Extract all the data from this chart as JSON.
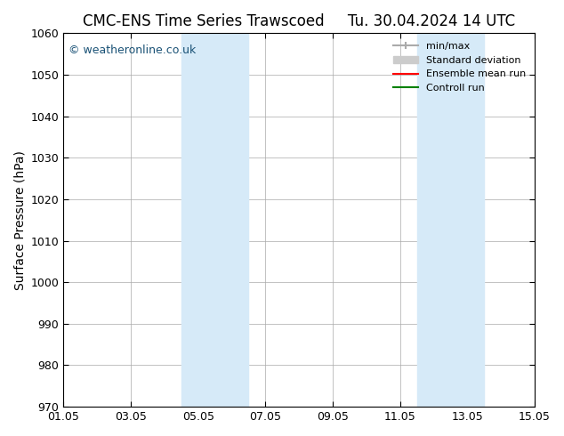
{
  "title_left": "CMC-ENS Time Series Trawscoed",
  "title_right": "Tu. 30.04.2024 14 UTC",
  "ylabel": "Surface Pressure (hPa)",
  "ylim": [
    970,
    1060
  ],
  "yticks": [
    970,
    980,
    990,
    1000,
    1010,
    1020,
    1030,
    1040,
    1050,
    1060
  ],
  "xlim_start": 0,
  "xlim_end": 14,
  "xtick_labels": [
    "01.05",
    "03.05",
    "05.05",
    "07.05",
    "09.05",
    "11.05",
    "13.05",
    "15.05"
  ],
  "xtick_positions": [
    0,
    2,
    4,
    6,
    8,
    10,
    12,
    14
  ],
  "shaded_bands": [
    {
      "x_start": 3.5,
      "x_end": 5.5,
      "color": "#d6eaf8"
    },
    {
      "x_start": 10.5,
      "x_end": 12.5,
      "color": "#d6eaf8"
    }
  ],
  "watermark_text": "© weatheronline.co.uk",
  "watermark_color": "#1a5276",
  "legend_entries": [
    {
      "label": "min/max",
      "color": "#aaaaaa",
      "lw": 1.5,
      "style": "|-|"
    },
    {
      "label": "Standard deviation",
      "color": "#cccccc",
      "lw": 6
    },
    {
      "label": "Ensemble mean run",
      "color": "red",
      "lw": 1.5
    },
    {
      "label": "Controll run",
      "color": "green",
      "lw": 1.5
    }
  ],
  "background_color": "#ffffff",
  "grid_color": "#aaaaaa",
  "title_fontsize": 12,
  "tick_fontsize": 9,
  "ylabel_fontsize": 10
}
